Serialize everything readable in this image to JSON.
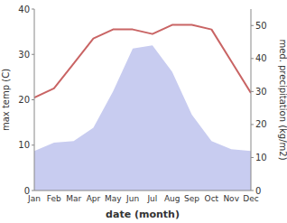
{
  "chart_data": {
    "type": "line",
    "x_label": "date (month)",
    "y_label": "max temp (C)",
    "y2_label": "med. precipitation (kg/m2)",
    "categories": [
      "Jan",
      "Feb",
      "Mar",
      "Apr",
      "May",
      "Jun",
      "Jul",
      "Aug",
      "Sep",
      "Oct",
      "Nov",
      "Dec"
    ],
    "series": [
      {
        "type": "area",
        "axis": "y2",
        "color": "#c8ccf0",
        "values": [
          12.0,
          14.5,
          15.0,
          19.0,
          30.0,
          43.0,
          44.0,
          36.0,
          23.0,
          15.0,
          12.5,
          12.0
        ]
      },
      {
        "type": "line",
        "color": "#c96464",
        "values": [
          20.5,
          22.5,
          28.0,
          33.5,
          35.5,
          35.5,
          34.5,
          36.5,
          36.5,
          35.5,
          28.5,
          21.5
        ]
      }
    ],
    "ylim": [
      0,
      40
    ],
    "yticks": [
      0,
      10,
      20,
      30,
      40
    ],
    "y2lim": [
      0,
      55
    ],
    "y2ticks": [
      0,
      10,
      20,
      30,
      40,
      50
    ],
    "grid": false
  }
}
